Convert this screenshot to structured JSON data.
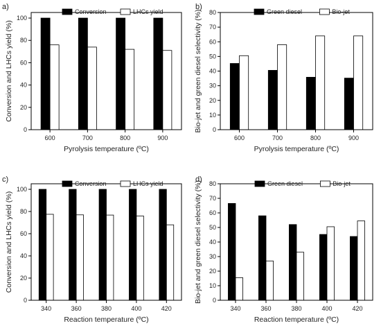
{
  "chart_data": [
    {
      "panel": "a)",
      "type": "bar",
      "categories": [
        "600",
        "700",
        "800",
        "900"
      ],
      "series": [
        {
          "name": "Conversion",
          "values": [
            100,
            100,
            100,
            100
          ]
        },
        {
          "name": "LHCs yield",
          "values": [
            76,
            74,
            72,
            71
          ]
        }
      ],
      "xlabel": "Pyrolysis temperature (ºC)",
      "ylabel": "Conversion and LHCs yield (%)",
      "ylim": [
        0,
        105
      ],
      "yticks": [
        0,
        20,
        40,
        60,
        80,
        100
      ],
      "legend_position": "top",
      "grid": false
    },
    {
      "panel": "b)",
      "type": "bar",
      "categories": [
        "600",
        "700",
        "800",
        "900"
      ],
      "series": [
        {
          "name": "Green diesel",
          "values": [
            45.2,
            40.5,
            35.8,
            35.2
          ]
        },
        {
          "name": "Bio-jet",
          "values": [
            50.5,
            58,
            64,
            64
          ]
        }
      ],
      "xlabel": "Pyrolysis temperature (ºC)",
      "ylabel": "Bio-jet and green diesel selectivity (%)",
      "ylim": [
        0,
        80
      ],
      "yticks": [
        0,
        10,
        20,
        30,
        40,
        50,
        60,
        70,
        80
      ],
      "legend_position": "top",
      "grid": false
    },
    {
      "panel": "c)",
      "type": "bar",
      "categories": [
        "340",
        "360",
        "380",
        "400",
        "420"
      ],
      "series": [
        {
          "name": "Conversion",
          "values": [
            100,
            100,
            100,
            100,
            100
          ]
        },
        {
          "name": "LHCs yield",
          "values": [
            77.5,
            77,
            76.8,
            76,
            68
          ]
        }
      ],
      "xlabel": "Reaction temperature (ºC)",
      "ylabel": "Conversion and LHCs yield (%)",
      "ylim": [
        0,
        105
      ],
      "yticks": [
        0,
        20,
        40,
        60,
        80,
        100
      ],
      "legend_position": "top",
      "grid": false
    },
    {
      "panel": "d)",
      "type": "bar",
      "categories": [
        "340",
        "360",
        "380",
        "400",
        "420"
      ],
      "series": [
        {
          "name": "Green diesel",
          "values": [
            66.5,
            58,
            52,
            45.2,
            43.8
          ]
        },
        {
          "name": "Bio-jet",
          "values": [
            15.5,
            27,
            33,
            50.5,
            54.5
          ]
        }
      ],
      "xlabel": "Reaction temperature (ºC)",
      "ylabel": "Bio-jet and green diesel selectivity (%)",
      "ylim": [
        0,
        80
      ],
      "yticks": [
        0,
        10,
        20,
        30,
        40,
        50,
        60,
        70,
        80
      ],
      "legend_position": "top",
      "grid": false
    }
  ],
  "colors": {
    "series1_fill": "#000000",
    "series2_fill": "#ffffff",
    "axis": "#000000"
  }
}
